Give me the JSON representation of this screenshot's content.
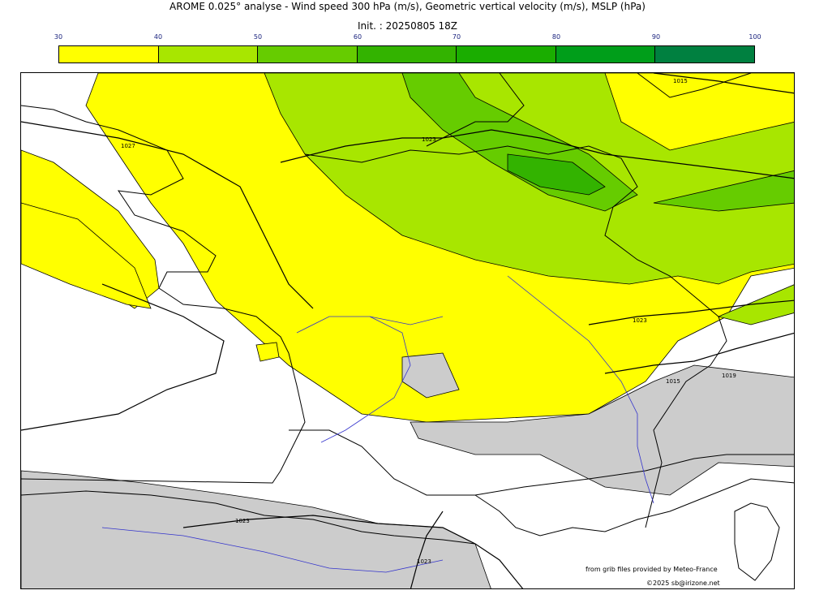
{
  "header": {
    "title": "AROME 0.025° analyse - Wind speed 300 hPa (m/s), Geometric vertical velocity (m/s), MSLP (hPa)",
    "init": "Init. : 20250805 18Z"
  },
  "colorbar": {
    "ticks": [
      "30",
      "40",
      "50",
      "60",
      "70",
      "80",
      "90",
      "100"
    ],
    "colors": [
      "#ffff00",
      "#a8e600",
      "#66cc00",
      "#33b300",
      "#1aad00",
      "#009e1a",
      "#008040",
      "#006b3f"
    ]
  },
  "map": {
    "isobar_labels": [
      "1027",
      "1023",
      "1023",
      "1023",
      "1019",
      "1015",
      "1023",
      "1015"
    ],
    "colors": {
      "wind_30_40": "#ffff00",
      "wind_40_50": "#a8e600",
      "wind_50_60": "#66cc00",
      "wind_60_70": "#33b300",
      "relief": "#cccccc",
      "rivers": "#3333cc",
      "sea": "#ffffff"
    }
  },
  "credits": {
    "grib": "from grib files provided by Meteo-France",
    "copyright": "©2025 sb@irizone.net"
  }
}
